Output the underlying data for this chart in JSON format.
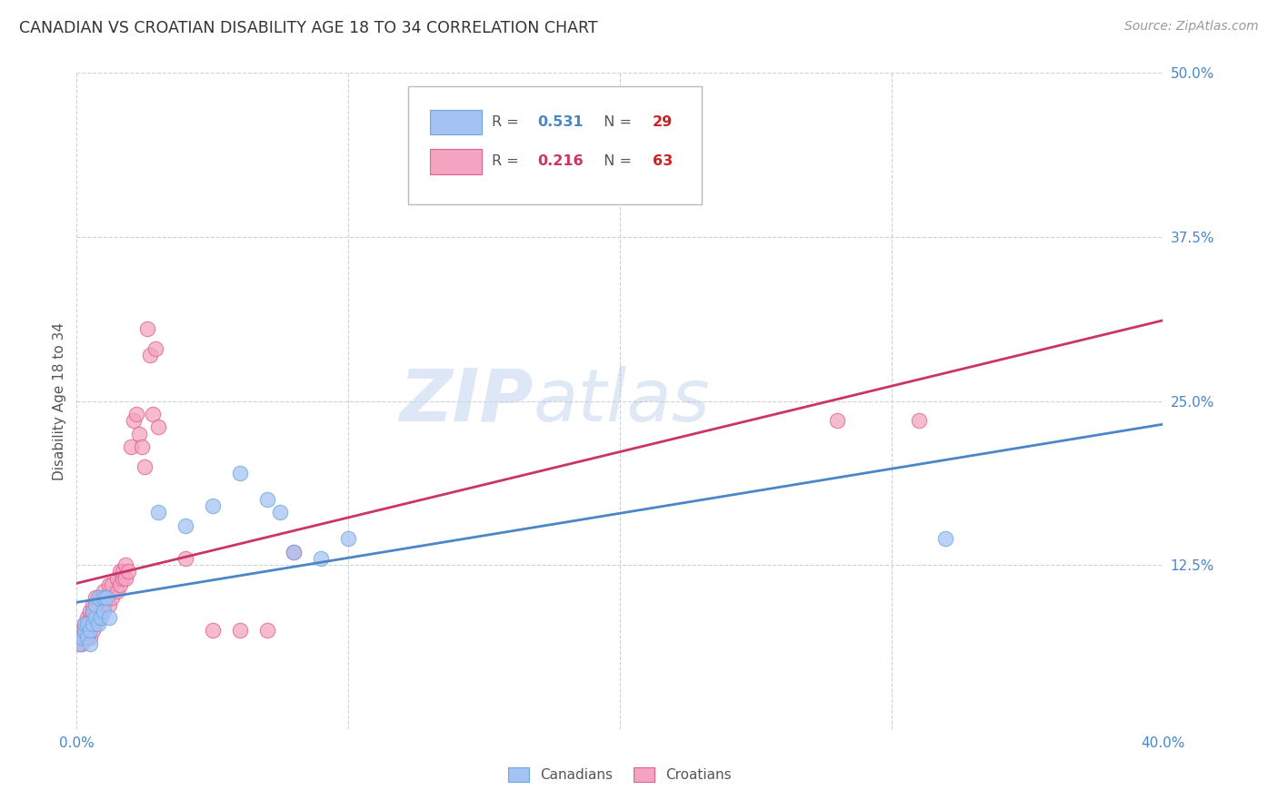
{
  "title": "CANADIAN VS CROATIAN DISABILITY AGE 18 TO 34 CORRELATION CHART",
  "source": "Source: ZipAtlas.com",
  "ylabel": "Disability Age 18 to 34",
  "xlim": [
    0.0,
    0.4
  ],
  "ylim": [
    0.0,
    0.5
  ],
  "yticks": [
    0.0,
    0.125,
    0.25,
    0.375,
    0.5
  ],
  "ytick_labels": [
    "",
    "12.5%",
    "25.0%",
    "37.5%",
    "50.0%"
  ],
  "xticks": [
    0.0,
    0.1,
    0.2,
    0.3,
    0.4
  ],
  "xtick_labels": [
    "0.0%",
    "",
    "",
    "",
    "40.0%"
  ],
  "canadian_R": 0.531,
  "canadian_N": 29,
  "croatian_R": 0.216,
  "croatian_N": 63,
  "canadian_color": "#a4c2f4",
  "croatian_color": "#f4a4c0",
  "canadian_edge_color": "#6fa8dc",
  "croatian_edge_color": "#e06090",
  "canadian_line_color": "#4a86c8",
  "croatian_line_color": "#cc3366",
  "background_color": "#ffffff",
  "grid_color": "#cccccc",
  "watermark_zip": "ZIP",
  "watermark_atlas": "atlas",
  "title_color": "#333333",
  "axis_label_color": "#555555",
  "tick_color": "#4a86c8",
  "canadians_x": [
    0.001,
    0.002,
    0.003,
    0.003,
    0.004,
    0.004,
    0.005,
    0.005,
    0.006,
    0.006,
    0.007,
    0.007,
    0.008,
    0.008,
    0.009,
    0.01,
    0.01,
    0.011,
    0.012,
    0.03,
    0.04,
    0.05,
    0.06,
    0.07,
    0.075,
    0.08,
    0.09,
    0.1,
    0.32
  ],
  "canadians_y": [
    0.065,
    0.07,
    0.075,
    0.08,
    0.07,
    0.08,
    0.065,
    0.075,
    0.08,
    0.09,
    0.085,
    0.095,
    0.08,
    0.1,
    0.085,
    0.09,
    0.1,
    0.1,
    0.085,
    0.165,
    0.155,
    0.17,
    0.195,
    0.175,
    0.165,
    0.135,
    0.13,
    0.145,
    0.145
  ],
  "croatians_x": [
    0.001,
    0.001,
    0.002,
    0.002,
    0.002,
    0.003,
    0.003,
    0.003,
    0.004,
    0.004,
    0.004,
    0.004,
    0.005,
    0.005,
    0.005,
    0.005,
    0.006,
    0.006,
    0.006,
    0.006,
    0.007,
    0.007,
    0.007,
    0.007,
    0.007,
    0.008,
    0.008,
    0.009,
    0.009,
    0.01,
    0.01,
    0.011,
    0.012,
    0.012,
    0.013,
    0.013,
    0.015,
    0.015,
    0.016,
    0.016,
    0.017,
    0.017,
    0.018,
    0.018,
    0.019,
    0.02,
    0.021,
    0.022,
    0.023,
    0.024,
    0.025,
    0.026,
    0.027,
    0.028,
    0.029,
    0.03,
    0.04,
    0.05,
    0.06,
    0.07,
    0.08,
    0.28,
    0.31
  ],
  "croatians_y": [
    0.065,
    0.07,
    0.065,
    0.07,
    0.075,
    0.07,
    0.075,
    0.08,
    0.07,
    0.075,
    0.08,
    0.085,
    0.07,
    0.08,
    0.085,
    0.09,
    0.075,
    0.085,
    0.09,
    0.095,
    0.08,
    0.085,
    0.09,
    0.095,
    0.1,
    0.085,
    0.095,
    0.09,
    0.1,
    0.095,
    0.105,
    0.1,
    0.095,
    0.11,
    0.1,
    0.11,
    0.105,
    0.115,
    0.11,
    0.12,
    0.115,
    0.12,
    0.115,
    0.125,
    0.12,
    0.215,
    0.235,
    0.24,
    0.225,
    0.215,
    0.2,
    0.305,
    0.285,
    0.24,
    0.29,
    0.23,
    0.13,
    0.075,
    0.075,
    0.075,
    0.135,
    0.235,
    0.235
  ]
}
